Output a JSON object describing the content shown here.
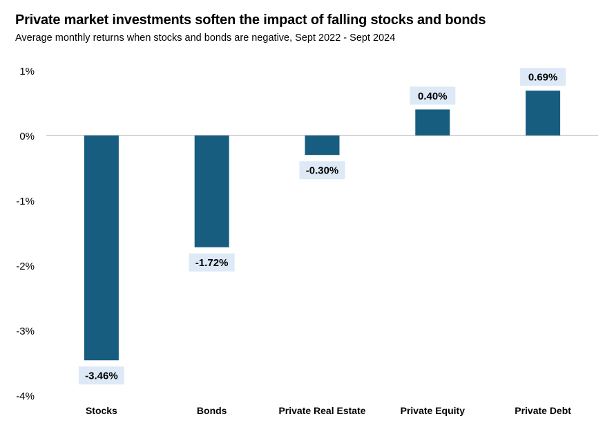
{
  "title": "Private market investments soften the impact of falling stocks and bonds",
  "subtitle": "Average monthly returns when stocks and bonds are negative, Sept 2022 - Sept 2024",
  "colors": {
    "bar": "#175d80",
    "label_bg": "#dde9f6",
    "axis": "#c8c8c8"
  },
  "chart_data": {
    "type": "bar",
    "categories": [
      "Stocks",
      "Bonds",
      "Private Real Estate",
      "Private Equity",
      "Private Debt"
    ],
    "values": [
      -3.46,
      -1.72,
      -0.3,
      0.4,
      0.69
    ],
    "data_labels": [
      "-3.46%",
      "-1.72%",
      "-0.30%",
      "0.40%",
      "0.69%"
    ],
    "ylim": [
      -4,
      1
    ],
    "yticks": [
      1,
      0,
      -1,
      -2,
      -3,
      -4
    ],
    "ytick_labels": [
      "1%",
      "0%",
      "-1%",
      "-2%",
      "-3%",
      "-4%"
    ],
    "xlabel": "",
    "ylabel": "",
    "grid": false,
    "legend": false
  }
}
